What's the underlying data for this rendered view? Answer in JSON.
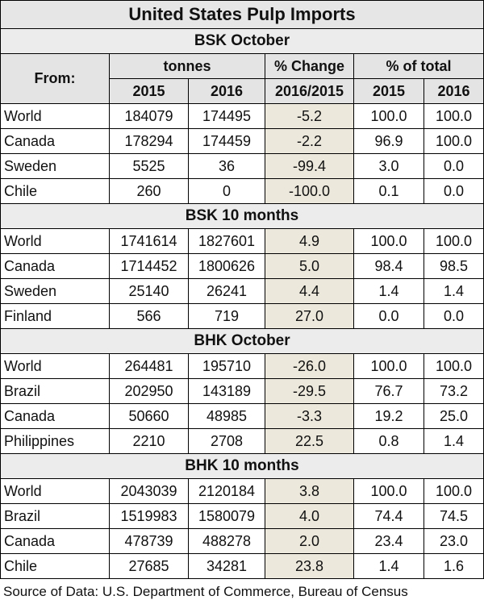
{
  "title": "United States Pulp Imports",
  "header": {
    "from": "From:",
    "tonnes": "tonnes",
    "pct_change": "% Change",
    "pct_total": "% of total",
    "year_a": "2015",
    "year_b": "2016",
    "change_period": "2016/2015",
    "year_c": "2015",
    "year_d": "2016"
  },
  "sections": [
    {
      "title": "BSK October",
      "rows": [
        [
          "World",
          "184079",
          "174495",
          "-5.2",
          "100.0",
          "100.0"
        ],
        [
          "Canada",
          "178294",
          "174459",
          "-2.2",
          "96.9",
          "100.0"
        ],
        [
          "Sweden",
          "5525",
          "36",
          "-99.4",
          "3.0",
          "0.0"
        ],
        [
          "Chile",
          "260",
          "0",
          "-100.0",
          "0.1",
          "0.0"
        ]
      ]
    },
    {
      "title": "BSK 10 months",
      "rows": [
        [
          "World",
          "1741614",
          "1827601",
          "4.9",
          "100.0",
          "100.0"
        ],
        [
          "Canada",
          "1714452",
          "1800626",
          "5.0",
          "98.4",
          "98.5"
        ],
        [
          "Sweden",
          "25140",
          "26241",
          "4.4",
          "1.4",
          "1.4"
        ],
        [
          "Finland",
          "566",
          "719",
          "27.0",
          "0.0",
          "0.0"
        ]
      ]
    },
    {
      "title": "BHK October",
      "rows": [
        [
          "World",
          "264481",
          "195710",
          "-26.0",
          "100.0",
          "100.0"
        ],
        [
          "Brazil",
          "202950",
          "143189",
          "-29.5",
          "76.7",
          "73.2"
        ],
        [
          "Canada",
          "50660",
          "48985",
          "-3.3",
          "19.2",
          "25.0"
        ],
        [
          "Philippines",
          "2210",
          "2708",
          "22.5",
          "0.8",
          "1.4"
        ]
      ]
    },
    {
      "title": "BHK 10 months",
      "rows": [
        [
          "World",
          "2043039",
          "2120184",
          "3.8",
          "100.0",
          "100.0"
        ],
        [
          "Brazil",
          "1519983",
          "1580079",
          "4.0",
          "74.4",
          "74.5"
        ],
        [
          "Canada",
          "478739",
          "488278",
          "2.0",
          "23.4",
          "23.0"
        ],
        [
          "Chile",
          "27685",
          "34281",
          "23.8",
          "1.4",
          "1.6"
        ]
      ]
    }
  ],
  "source": "Source of Data: U.S. Department of Commerce, Bureau of Census"
}
